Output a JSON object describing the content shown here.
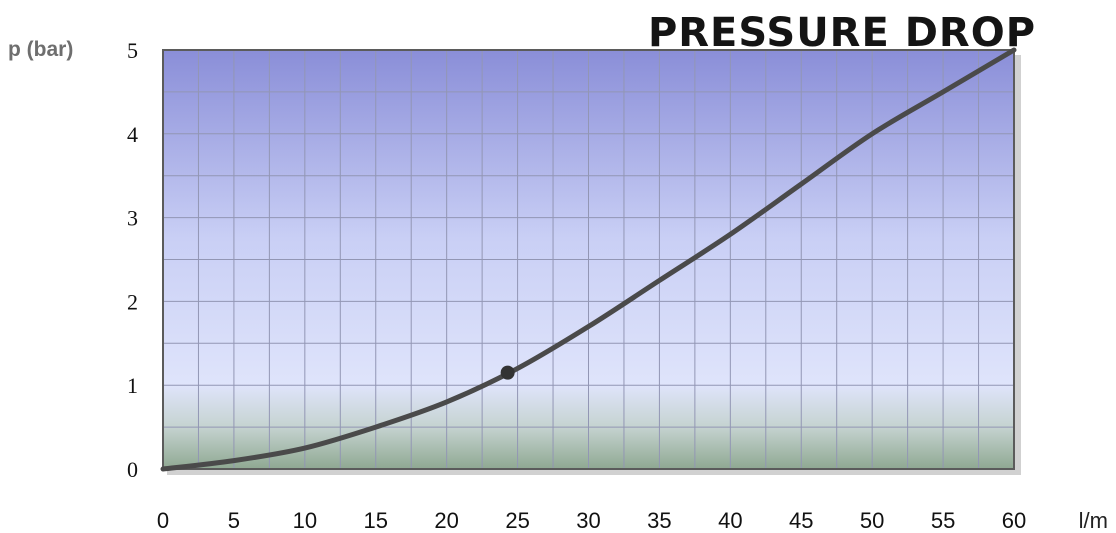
{
  "chart_data": {
    "type": "line",
    "title": "PRESSURE DROP",
    "xlabel": "l/m",
    "ylabel": "p (bar)",
    "xlim": [
      0,
      60
    ],
    "ylim": [
      0,
      5
    ],
    "xticks": [
      "0",
      "5",
      "10",
      "15",
      "20",
      "25",
      "30",
      "35",
      "40",
      "45",
      "50",
      "55",
      "60"
    ],
    "yticks": [
      "0",
      "1",
      "2",
      "3",
      "4",
      "5"
    ],
    "grid": true,
    "series": [
      {
        "x": [
          0,
          5,
          10,
          15,
          20,
          25,
          30,
          35,
          40,
          45,
          50,
          55,
          60
        ],
        "y": [
          0,
          0.1,
          0.25,
          0.5,
          0.8,
          1.2,
          1.7,
          2.25,
          2.8,
          3.4,
          4.0,
          4.5,
          5.0
        ],
        "color": "#4a4a4a"
      }
    ],
    "markers": [
      {
        "x": 24.3,
        "y": 1.15
      }
    ],
    "colors": {
      "plot_top": "#8a8ed8",
      "plot_mid": "#dfe4fb",
      "plot_bottom": "#8fa892",
      "frame": "#5b5b5b",
      "grid": "#9296b4",
      "line": "#4a4a4a"
    }
  }
}
